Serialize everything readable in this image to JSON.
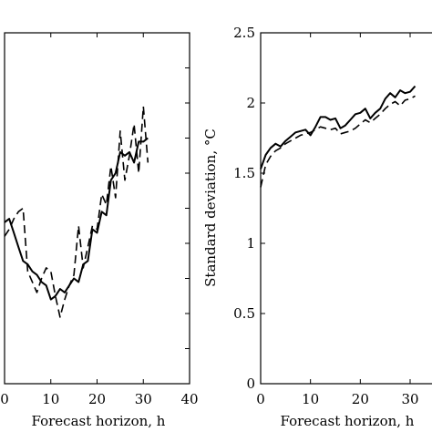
{
  "chart_data": [
    {
      "id": "left",
      "type": "line",
      "xlabel": "Forecast horizon, h",
      "ylabel": "",
      "xlim": [
        0,
        40
      ],
      "xticks": [
        0,
        10,
        20,
        30,
        40
      ],
      "yticks": [],
      "grid": false,
      "series": [
        {
          "style": "solid",
          "x": [
            0,
            1,
            2,
            3,
            4,
            5,
            6,
            7,
            8,
            9,
            10,
            11,
            12,
            13,
            14,
            15,
            16,
            17,
            18,
            19,
            20,
            21,
            22,
            23,
            24,
            25,
            26,
            27,
            28,
            29,
            30,
            31
          ],
          "y": [
            0.46,
            0.47,
            0.43,
            0.39,
            0.35,
            0.34,
            0.32,
            0.31,
            0.29,
            0.28,
            0.24,
            0.25,
            0.27,
            0.26,
            0.28,
            0.3,
            0.29,
            0.34,
            0.35,
            0.44,
            0.43,
            0.49,
            0.48,
            0.58,
            0.6,
            0.66,
            0.65,
            0.66,
            0.63,
            0.69,
            0.69,
            0.7
          ]
        },
        {
          "style": "dashed",
          "x": [
            0,
            1,
            2,
            3,
            4,
            5,
            6,
            7,
            8,
            9,
            10,
            11,
            12,
            13,
            14,
            15,
            16,
            17,
            18,
            19,
            20,
            21,
            22,
            23,
            24,
            25,
            26,
            27,
            28,
            29,
            30,
            31
          ],
          "y": [
            0.42,
            0.44,
            0.47,
            0.49,
            0.5,
            0.32,
            0.29,
            0.26,
            0.3,
            0.33,
            0.32,
            0.25,
            0.19,
            0.24,
            0.28,
            0.31,
            0.45,
            0.33,
            0.39,
            0.45,
            0.44,
            0.54,
            0.51,
            0.62,
            0.53,
            0.72,
            0.58,
            0.65,
            0.74,
            0.6,
            0.79,
            0.63
          ]
        }
      ]
    },
    {
      "id": "right",
      "type": "line",
      "xlabel": "Forecast horizon, h",
      "ylabel": "Standard deviation, °C",
      "xlim": [
        0,
        32
      ],
      "ylim": [
        0,
        2.5
      ],
      "xticks": [
        0,
        10,
        20,
        30
      ],
      "yticks": [
        0,
        0.5,
        1,
        1.5,
        2,
        2.5
      ],
      "ytick_labels": [
        "0",
        "0.5",
        "1",
        "1.5",
        "2",
        "2.5"
      ],
      "grid": false,
      "series": [
        {
          "style": "solid",
          "x": [
            0,
            1,
            2,
            3,
            4,
            5,
            6,
            7,
            8,
            9,
            10,
            11,
            12,
            13,
            14,
            15,
            16,
            17,
            18,
            19,
            20,
            21,
            22,
            23,
            24,
            25,
            26,
            27,
            28,
            29,
            30,
            31
          ],
          "y": [
            1.53,
            1.63,
            1.68,
            1.71,
            1.69,
            1.73,
            1.76,
            1.79,
            1.8,
            1.81,
            1.77,
            1.83,
            1.9,
            1.9,
            1.88,
            1.89,
            1.82,
            1.84,
            1.88,
            1.92,
            1.93,
            1.96,
            1.89,
            1.93,
            1.96,
            2.03,
            2.07,
            2.04,
            2.09,
            2.07,
            2.08,
            2.12
          ]
        },
        {
          "style": "dashed",
          "x": [
            0,
            1,
            2,
            3,
            4,
            5,
            6,
            7,
            8,
            9,
            10,
            11,
            12,
            13,
            14,
            15,
            16,
            17,
            18,
            19,
            20,
            21,
            22,
            23,
            24,
            25,
            26,
            27,
            28,
            29,
            30,
            31
          ],
          "y": [
            1.4,
            1.56,
            1.62,
            1.66,
            1.68,
            1.71,
            1.73,
            1.75,
            1.77,
            1.78,
            1.79,
            1.81,
            1.83,
            1.82,
            1.81,
            1.82,
            1.78,
            1.79,
            1.8,
            1.82,
            1.85,
            1.88,
            1.86,
            1.89,
            1.92,
            1.96,
            1.99,
            2.01,
            1.98,
            2.02,
            2.03,
            2.05
          ]
        }
      ]
    }
  ]
}
